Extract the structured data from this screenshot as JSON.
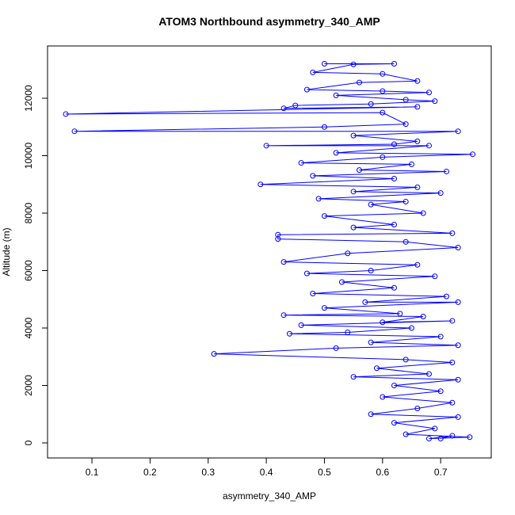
{
  "chart_data": {
    "type": "line",
    "title": "ATOM3 Northbound asymmetry_340_AMP",
    "x_label": "asymmetry_340_AMP",
    "y_label": "Altitude (m)",
    "color": "#0000ff",
    "markers": true,
    "xlim": [
      0.0236,
      0.787
    ],
    "ylim": [
      -524,
      13821
    ],
    "xticks": [
      0.1,
      0.2,
      0.3,
      0.4,
      0.5,
      0.6,
      0.7
    ],
    "yticks": [
      0,
      2000,
      4000,
      6000,
      8000,
      10000,
      12000
    ],
    "x": [
      0.5,
      0.62,
      0.55,
      0.48,
      0.6,
      0.66,
      0.56,
      0.47,
      0.6,
      0.68,
      0.52,
      0.64,
      0.69,
      0.58,
      0.45,
      0.43,
      0.66,
      0.055,
      0.6,
      0.64,
      0.5,
      0.07,
      0.73,
      0.55,
      0.66,
      0.62,
      0.4,
      0.68,
      0.52,
      0.755,
      0.6,
      0.46,
      0.65,
      0.56,
      0.71,
      0.48,
      0.62,
      0.39,
      0.66,
      0.55,
      0.7,
      0.49,
      0.64,
      0.58,
      0.67,
      0.5,
      0.62,
      0.55,
      0.72,
      0.42,
      0.42,
      0.64,
      0.73,
      0.54,
      0.43,
      0.66,
      0.58,
      0.47,
      0.69,
      0.53,
      0.62,
      0.48,
      0.71,
      0.57,
      0.73,
      0.5,
      0.63,
      0.43,
      0.67,
      0.6,
      0.72,
      0.46,
      0.65,
      0.54,
      0.44,
      0.7,
      0.58,
      0.73,
      0.52,
      0.31,
      0.64,
      0.72,
      0.59,
      0.68,
      0.55,
      0.73,
      0.62,
      0.7,
      0.6,
      0.72,
      0.66,
      0.58,
      0.73,
      0.62,
      0.69,
      0.64,
      0.75,
      0.68,
      0.72,
      0.7
    ],
    "values": [
      13200,
      13200,
      13180,
      12900,
      12850,
      12600,
      12550,
      12300,
      12250,
      12200,
      12100,
      11950,
      11900,
      11800,
      11750,
      11650,
      11700,
      11450,
      11500,
      11100,
      11000,
      10850,
      10850,
      10700,
      10500,
      10400,
      10350,
      10350,
      10100,
      10050,
      9950,
      9750,
      9700,
      9500,
      9450,
      9300,
      9200,
      9000,
      8900,
      8750,
      8700,
      8500,
      8400,
      8300,
      8000,
      7900,
      7600,
      7500,
      7300,
      7250,
      7100,
      7000,
      6800,
      6600,
      6300,
      6200,
      6000,
      5900,
      5800,
      5600,
      5400,
      5200,
      5100,
      4900,
      4900,
      4700,
      4500,
      4450,
      4400,
      4200,
      4250,
      4100,
      4000,
      3850,
      3800,
      3700,
      3500,
      3400,
      3300,
      3100,
      2900,
      2800,
      2600,
      2400,
      2300,
      2200,
      2000,
      1800,
      1600,
      1400,
      1200,
      1000,
      900,
      700,
      500,
      300,
      200,
      150,
      250,
      150
    ]
  }
}
